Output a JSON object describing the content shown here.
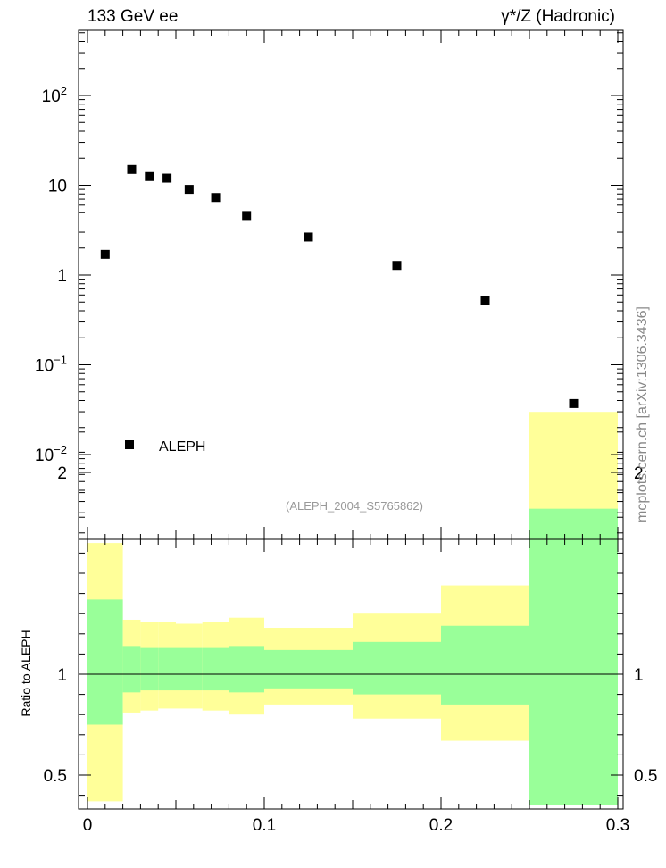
{
  "header": {
    "left_title": "133 GeV ee",
    "right_title": "γ*/Z (Hadronic)"
  },
  "side_label": "mcplots.cern.ch [arXiv:1306.3436]",
  "analysis_tag": "(ALEPH_2004_S5765862)",
  "legend": {
    "label": "ALEPH"
  },
  "ratio_ylabel": "Ratio to ALEPH",
  "colors": {
    "green_band": "#99ff99",
    "yellow_band": "#ffff99",
    "marker": "#000000"
  },
  "chart_data": [
    {
      "type": "scatter",
      "yscale": "log",
      "ylim": [
        0.001,
        500
      ],
      "xlim": [
        0,
        0.3
      ],
      "ytick_labels": [
        "10^-2",
        "10^-1",
        "1",
        "10",
        "10^2"
      ],
      "series": [
        {
          "name": "ALEPH",
          "x": [
            0.01,
            0.025,
            0.035,
            0.045,
            0.0575,
            0.0725,
            0.09,
            0.125,
            0.175,
            0.225,
            0.275
          ],
          "y": [
            1.7,
            15.0,
            12.5,
            12.0,
            9.0,
            7.3,
            4.6,
            2.65,
            1.28,
            0.52,
            0.037
          ]
        }
      ]
    },
    {
      "type": "area",
      "xlim": [
        0,
        0.3
      ],
      "ylim": [
        0.35,
        2.3
      ],
      "xtick_labels": [
        "0",
        "0.1",
        "0.2",
        "0.3"
      ],
      "ytick_labels": [
        "0.5",
        "1",
        "2"
      ],
      "reference_line": 1,
      "bins": [
        {
          "x0": 0.0,
          "x1": 0.02,
          "y_lo": 0.37,
          "y_hi": 1.65,
          "g_lo": 0.75,
          "g_hi": 1.37
        },
        {
          "x0": 0.02,
          "x1": 0.03,
          "y_lo": 0.81,
          "y_hi": 1.27,
          "g_lo": 0.91,
          "g_hi": 1.14
        },
        {
          "x0": 0.03,
          "x1": 0.04,
          "y_lo": 0.82,
          "y_hi": 1.26,
          "g_lo": 0.92,
          "g_hi": 1.13
        },
        {
          "x0": 0.04,
          "x1": 0.05,
          "y_lo": 0.83,
          "y_hi": 1.26,
          "g_lo": 0.92,
          "g_hi": 1.13
        },
        {
          "x0": 0.05,
          "x1": 0.065,
          "y_lo": 0.83,
          "y_hi": 1.25,
          "g_lo": 0.92,
          "g_hi": 1.13
        },
        {
          "x0": 0.065,
          "x1": 0.08,
          "y_lo": 0.82,
          "y_hi": 1.26,
          "g_lo": 0.92,
          "g_hi": 1.13
        },
        {
          "x0": 0.08,
          "x1": 0.1,
          "y_lo": 0.8,
          "y_hi": 1.28,
          "g_lo": 0.91,
          "g_hi": 1.14
        },
        {
          "x0": 0.1,
          "x1": 0.15,
          "y_lo": 0.85,
          "y_hi": 1.23,
          "g_lo": 0.93,
          "g_hi": 1.12
        },
        {
          "x0": 0.15,
          "x1": 0.2,
          "y_lo": 0.78,
          "y_hi": 1.3,
          "g_lo": 0.9,
          "g_hi": 1.16
        },
        {
          "x0": 0.2,
          "x1": 0.25,
          "y_lo": 0.67,
          "y_hi": 1.44,
          "g_lo": 0.85,
          "g_hi": 1.24
        },
        {
          "x0": 0.25,
          "x1": 0.3,
          "y_lo": 0.35,
          "y_hi": 2.3,
          "g_lo": 0.35,
          "g_hi": 1.82
        }
      ]
    }
  ]
}
